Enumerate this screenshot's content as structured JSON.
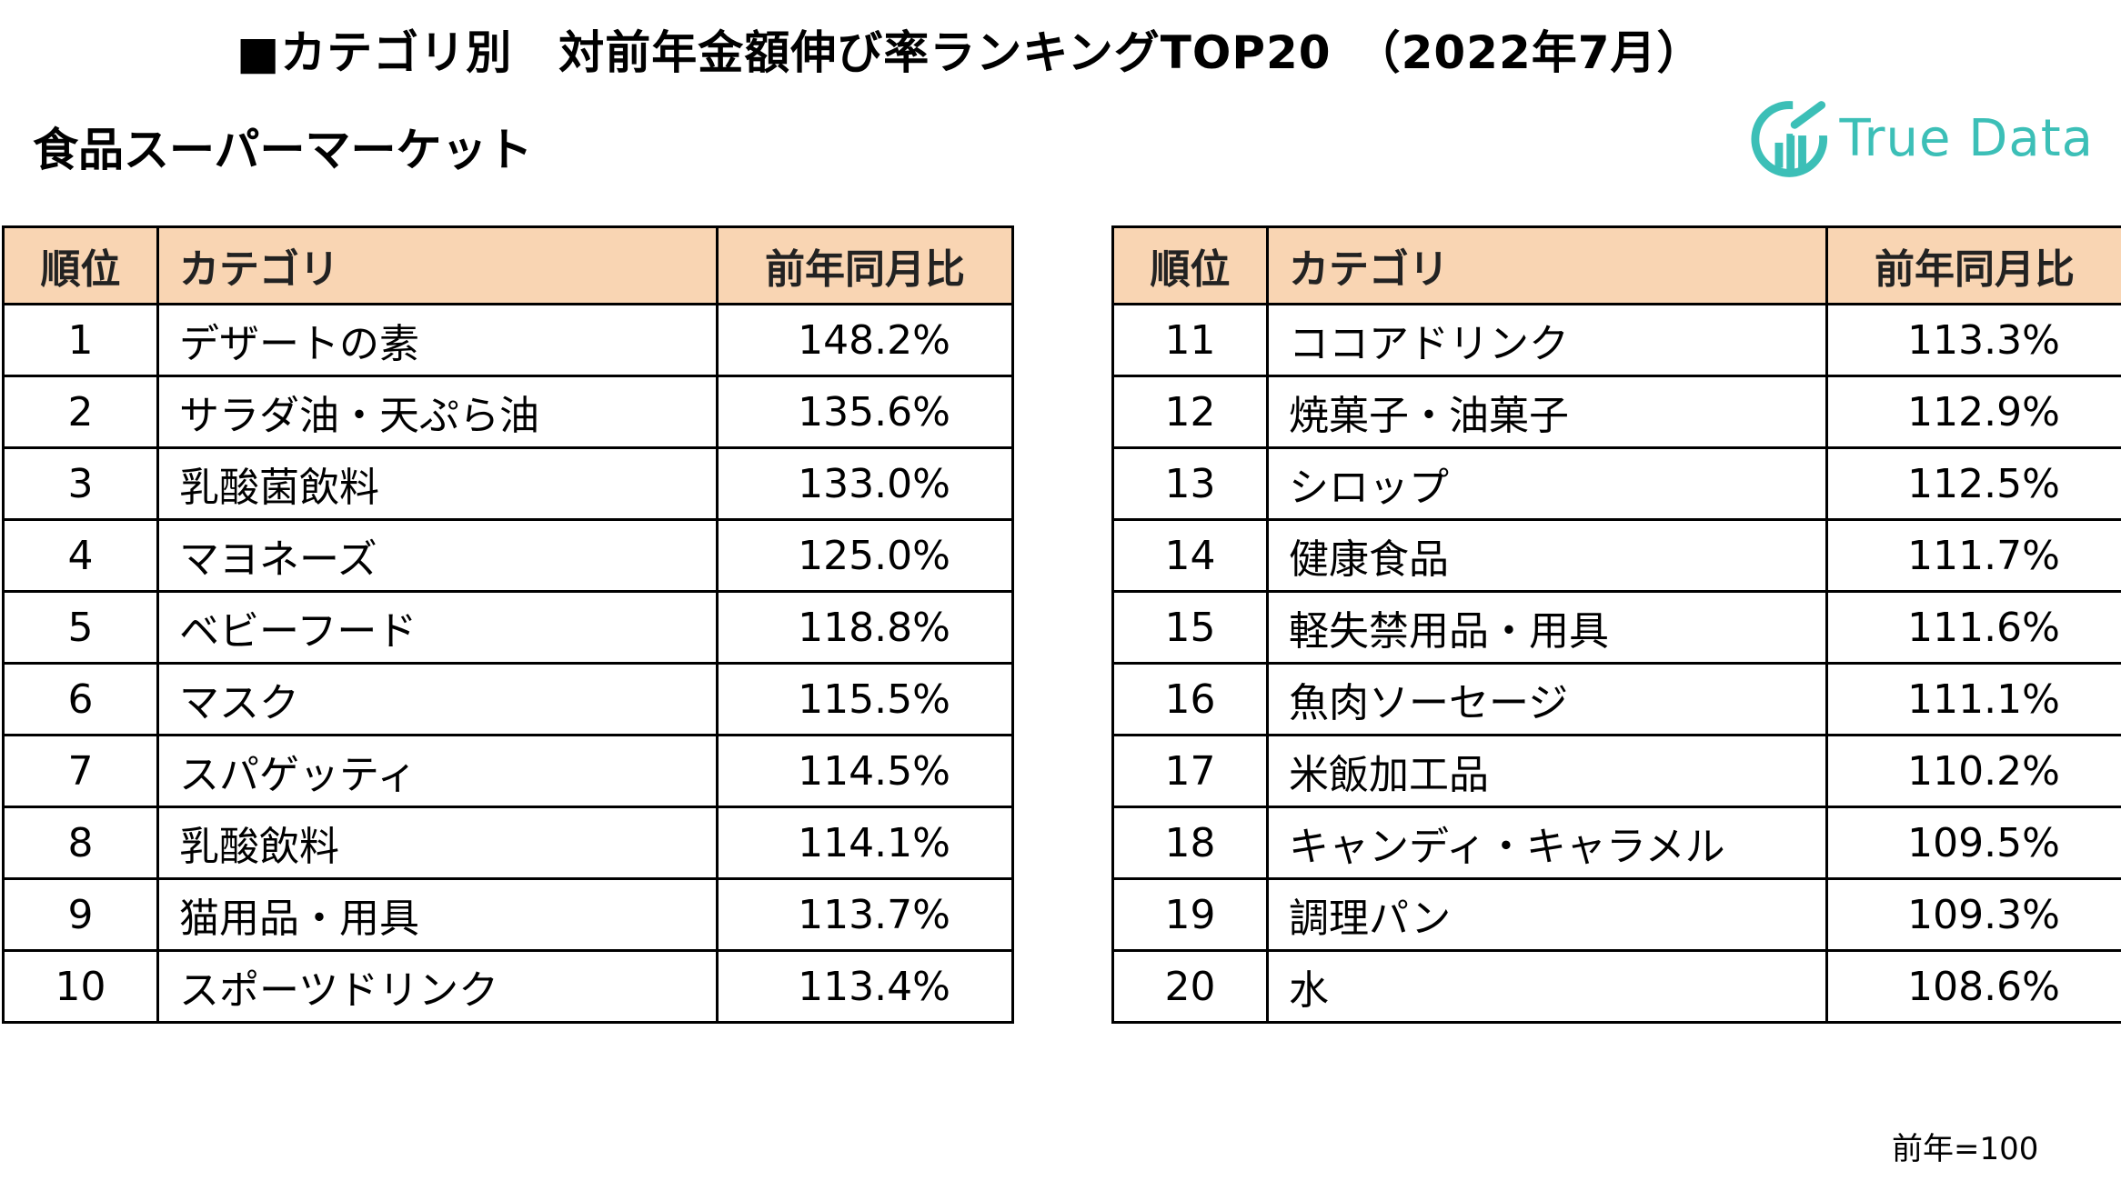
{
  "title": "■カテゴリ別　対前年金額伸び率ランキングTOP20　（2022年7月）",
  "subtitle": "食品スーパーマーケット",
  "logo": {
    "text": "True Data",
    "accent": "#3cbfb7"
  },
  "colors": {
    "header_bg": "#f9d5b3",
    "border": "#000000"
  },
  "headers": {
    "rank": "順位",
    "category": "カテゴリ",
    "ratio": "前年同月比"
  },
  "left_rows": [
    {
      "rank": "1",
      "category": "デザートの素",
      "ratio": "148.2%"
    },
    {
      "rank": "2",
      "category": "サラダ油・天ぷら油",
      "ratio": "135.6%"
    },
    {
      "rank": "3",
      "category": "乳酸菌飲料",
      "ratio": "133.0%"
    },
    {
      "rank": "4",
      "category": "マヨネーズ",
      "ratio": "125.0%"
    },
    {
      "rank": "5",
      "category": "ベビーフード",
      "ratio": "118.8%"
    },
    {
      "rank": "6",
      "category": "マスク",
      "ratio": "115.5%"
    },
    {
      "rank": "7",
      "category": "スパゲッティ",
      "ratio": "114.5%"
    },
    {
      "rank": "8",
      "category": "乳酸飲料",
      "ratio": "114.1%"
    },
    {
      "rank": "9",
      "category": "猫用品・用具",
      "ratio": "113.7%"
    },
    {
      "rank": "10",
      "category": "スポーツドリンク",
      "ratio": "113.4%"
    }
  ],
  "right_rows": [
    {
      "rank": "11",
      "category": "ココアドリンク",
      "ratio": "113.3%"
    },
    {
      "rank": "12",
      "category": "焼菓子・油菓子",
      "ratio": "112.9%"
    },
    {
      "rank": "13",
      "category": "シロップ",
      "ratio": "112.5%"
    },
    {
      "rank": "14",
      "category": "健康食品",
      "ratio": "111.7%"
    },
    {
      "rank": "15",
      "category": "軽失禁用品・用具",
      "ratio": "111.6%"
    },
    {
      "rank": "16",
      "category": "魚肉ソーセージ",
      "ratio": "111.1%"
    },
    {
      "rank": "17",
      "category": "米飯加工品",
      "ratio": "110.2%"
    },
    {
      "rank": "18",
      "category": "キャンディ・キャラメル",
      "ratio": "109.5%"
    },
    {
      "rank": "19",
      "category": "調理パン",
      "ratio": "109.3%"
    },
    {
      "rank": "20",
      "category": "水",
      "ratio": "108.6%"
    }
  ],
  "footnote": "前年=100"
}
